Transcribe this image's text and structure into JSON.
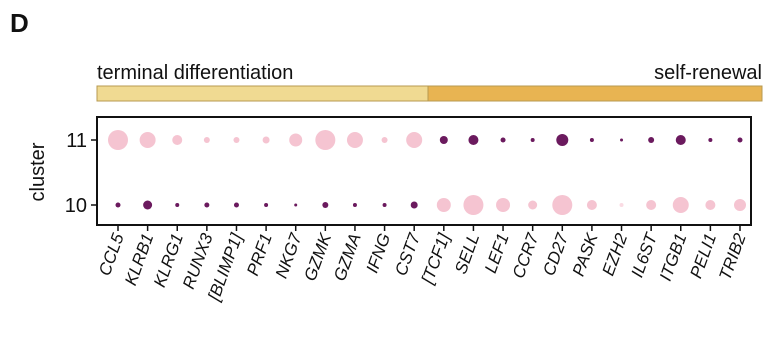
{
  "panel_label": "D",
  "annotations": [
    "terminal differentiation",
    "self-renewal"
  ],
  "chart_data": {
    "type": "dot",
    "ylabel": "cluster",
    "categories": [
      "CCL5",
      "KLRB1",
      "KLRG1",
      "RUNX3",
      "[BLIMP1]",
      "PRF1",
      "NKG7",
      "GZMK",
      "GZMA",
      "IFNG",
      "CST7",
      "[TCF1]",
      "SELL",
      "LEF1",
      "CCR7",
      "CD27",
      "PASK",
      "EZH2",
      "IL6ST",
      "ITGB1",
      "PELI1",
      "TRIB2"
    ],
    "series": [
      {
        "name": "11",
        "sizes": [
          10,
          8,
          5,
          3,
          3,
          3.5,
          6.5,
          10,
          8,
          3,
          8,
          4,
          5,
          2.5,
          2,
          6,
          2,
          1.5,
          3,
          5,
          2,
          2.5
        ],
        "colors": [
          "#f5c4d1",
          "#f5c4d1",
          "#f5c4d1",
          "#f5c4d1",
          "#f5c4d1",
          "#f5c4d1",
          "#f5c4d1",
          "#f5c4d1",
          "#f5c4d1",
          "#f5c4d1",
          "#f5c4d1",
          "#6b1a5e",
          "#6b1a5e",
          "#6b1a5e",
          "#6b1a5e",
          "#6b1a5e",
          "#6b1a5e",
          "#6b1a5e",
          "#6b1a5e",
          "#6b1a5e",
          "#6b1a5e",
          "#6b1a5e"
        ]
      },
      {
        "name": "10",
        "sizes": [
          2.5,
          4.5,
          2,
          2.5,
          2.5,
          2,
          1.5,
          3,
          2,
          2,
          3.5,
          7,
          10,
          7,
          4.5,
          10,
          5,
          2,
          5,
          8,
          5,
          6
        ],
        "colors": [
          "#6b1a5e",
          "#6b1a5e",
          "#6b1a5e",
          "#6b1a5e",
          "#6b1a5e",
          "#6b1a5e",
          "#6b1a5e",
          "#6b1a5e",
          "#6b1a5e",
          "#6b1a5e",
          "#6b1a5e",
          "#f5c4d1",
          "#f5c4d1",
          "#f5c4d1",
          "#f5c4d1",
          "#f5c4d1",
          "#f5c4d1",
          "#fadbe3",
          "#f5c4d1",
          "#f5c4d1",
          "#f5c4d1",
          "#f5c4d1"
        ]
      }
    ]
  }
}
